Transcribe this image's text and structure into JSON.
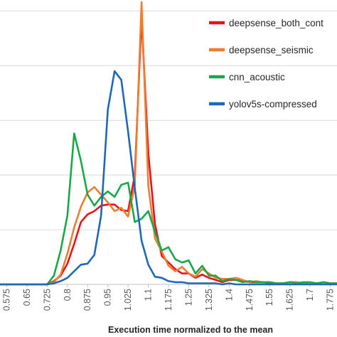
{
  "chart_data": {
    "type": "line",
    "title": "",
    "xlabel": "Execution time normalized to the mean",
    "ylabel": "",
    "xlim": [
      0.55,
      1.8
    ],
    "ylim": [
      0,
      0.26
    ],
    "grid": "horizontal",
    "legend_position": "top-right",
    "x_ticks": [
      "0.575",
      "0.65",
      "0.725",
      "0.8",
      "0.875",
      "0.95",
      "1.025",
      "1.1",
      "1.175",
      "1.25",
      "1.325",
      "1.4",
      "1.475",
      "1.55",
      "1.625",
      "1.7",
      "1.775"
    ],
    "x": [
      0.55,
      0.575,
      0.6,
      0.625,
      0.65,
      0.675,
      0.7,
      0.725,
      0.75,
      0.775,
      0.8,
      0.825,
      0.85,
      0.875,
      0.9,
      0.925,
      0.95,
      0.975,
      1.0,
      1.025,
      1.05,
      1.075,
      1.1,
      1.125,
      1.15,
      1.175,
      1.2,
      1.225,
      1.25,
      1.275,
      1.3,
      1.325,
      1.35,
      1.375,
      1.4,
      1.425,
      1.45,
      1.475,
      1.5,
      1.525,
      1.55,
      1.575,
      1.6,
      1.625,
      1.65,
      1.675,
      1.7,
      1.725,
      1.75,
      1.775,
      1.8
    ],
    "series": [
      {
        "name": "deepsense_both_cont",
        "color": "#e8131a",
        "values": [
          0,
          0,
          0,
          0,
          0,
          0,
          0,
          0,
          0.003,
          0.008,
          0.019,
          0.037,
          0.057,
          0.064,
          0.067,
          0.072,
          0.073,
          0.073,
          0.068,
          0.067,
          0.1,
          0.244,
          0.12,
          0.055,
          0.026,
          0.02,
          0.014,
          0.01,
          0.01,
          0.006,
          0.009,
          0.006,
          0.004,
          0.002,
          0.004,
          0.004,
          0.003,
          0.002,
          0.002,
          0.002,
          0.001,
          0.001,
          0.001,
          0.002,
          0.002,
          0.001,
          0.001,
          0.001,
          0.002,
          0.001,
          0.001
        ]
      },
      {
        "name": "deepsense_seismic",
        "color": "#ed7d31",
        "values": [
          0,
          0,
          0,
          0,
          0,
          0,
          0,
          0,
          0.002,
          0.009,
          0.028,
          0.052,
          0.071,
          0.084,
          0.089,
          0.082,
          0.075,
          0.067,
          0.07,
          0.062,
          0.09,
          0.258,
          0.09,
          0.042,
          0.03,
          0.017,
          0.012,
          0.016,
          0.01,
          0.007,
          0.014,
          0.01,
          0.006,
          0.005,
          0.005,
          0.006,
          0.004,
          0.002,
          0.003,
          0.002,
          0.002,
          0.001,
          0.001,
          0.002,
          0.002,
          0.001,
          0.001,
          0.001,
          0.002,
          0.001,
          0.001
        ]
      },
      {
        "name": "cnn_acoustic",
        "color": "#18a84a",
        "values": [
          0,
          0,
          0,
          0,
          0,
          0,
          0,
          0,
          0.008,
          0.031,
          0.063,
          0.138,
          0.113,
          0.082,
          0.072,
          0.08,
          0.085,
          0.08,
          0.091,
          0.093,
          0.057,
          0.06,
          0.067,
          0.048,
          0.031,
          0.034,
          0.023,
          0.02,
          0.022,
          0.01,
          0.017,
          0.008,
          0.008,
          0.003,
          0.005,
          0.004,
          0.002,
          0.003,
          0.002,
          0.002,
          0.002,
          0.001,
          0.001,
          0.002,
          0.001,
          0.002,
          0.002,
          0.001,
          0.002,
          0.001,
          0.001
        ]
      },
      {
        "name": "yolov5s-compressed",
        "color": "#1f68b8",
        "values": [
          0,
          0,
          0,
          0,
          0,
          0,
          0,
          0,
          0.001,
          0.003,
          0.006,
          0.012,
          0.018,
          0.019,
          0.027,
          0.063,
          0.16,
          0.195,
          0.187,
          0.14,
          0.088,
          0.04,
          0.018,
          0.007,
          0.006,
          0.003,
          0.002,
          0.002,
          0.001,
          0.001,
          0.001,
          0.001,
          0.001,
          0,
          0.001,
          0,
          0,
          0,
          0,
          0,
          0,
          0,
          0,
          0,
          0,
          0,
          0,
          0,
          0,
          0,
          0
        ]
      }
    ]
  }
}
